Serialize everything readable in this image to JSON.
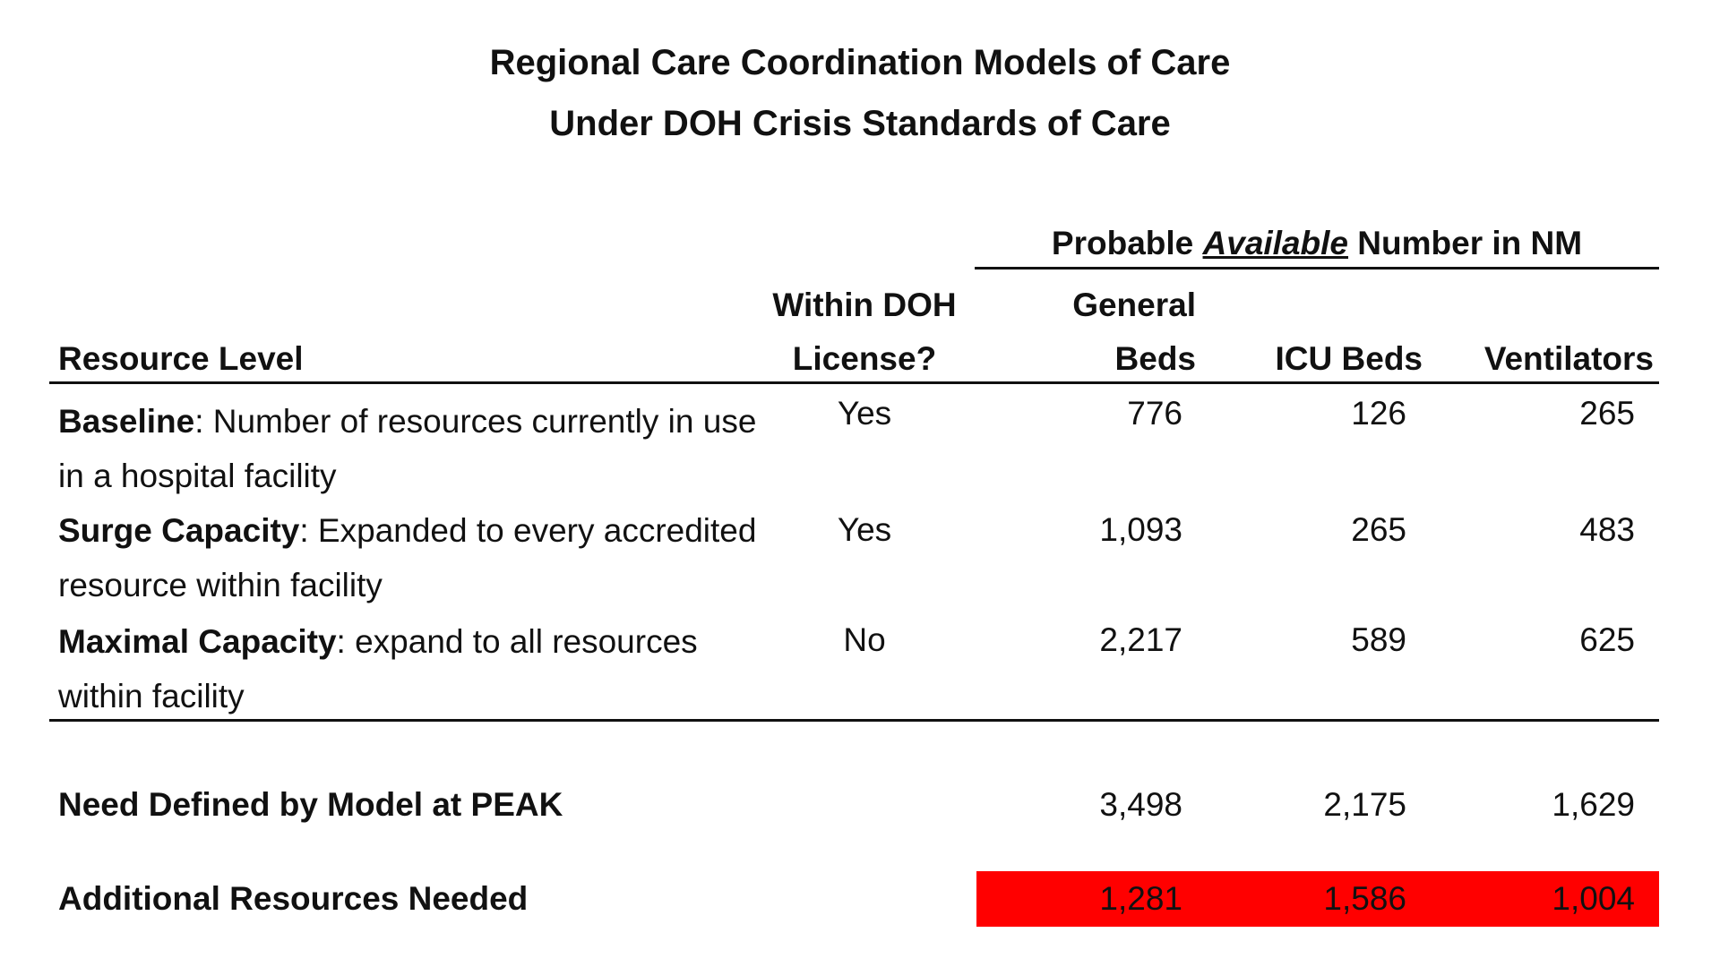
{
  "title": {
    "line1": "Regional Care Coordination Models of Care",
    "line2": "Under DOH Crisis Standards of Care"
  },
  "group_header": {
    "prefix": "Probable",
    "emphasis": "Available",
    "suffix": "Number in NM"
  },
  "columns": {
    "resource_level": "Resource Level",
    "license_line1": "Within DOH",
    "license_line2": "License?",
    "general_line1": "General",
    "general_line2": "Beds",
    "icu": "ICU Beds",
    "ventilators": "Ventilators"
  },
  "rows": [
    {
      "label": "Baseline",
      "description": ": Number of resources currently in use in a hospital facility",
      "license": "Yes",
      "general_beds": "776",
      "icu_beds": "126",
      "ventilators": "265"
    },
    {
      "label": "Surge Capacity",
      "description": ": Expanded to every accredited resource within facility",
      "license": "Yes",
      "general_beds": "1,093",
      "icu_beds": "265",
      "ventilators": "483"
    },
    {
      "label": "Maximal Capacity",
      "description": ": expand to all resources within facility",
      "license": "No",
      "general_beds": "2,217",
      "icu_beds": "589",
      "ventilators": "625"
    }
  ],
  "peak_need": {
    "label": "Need Defined by Model at PEAK",
    "general_beds": "3,498",
    "icu_beds": "2,175",
    "ventilators": "1,629"
  },
  "additional_needed": {
    "label": "Additional Resources Needed",
    "general_beds": "1,281",
    "icu_beds": "1,586",
    "ventilators": "1,004",
    "highlight_color": "#ff0000"
  }
}
